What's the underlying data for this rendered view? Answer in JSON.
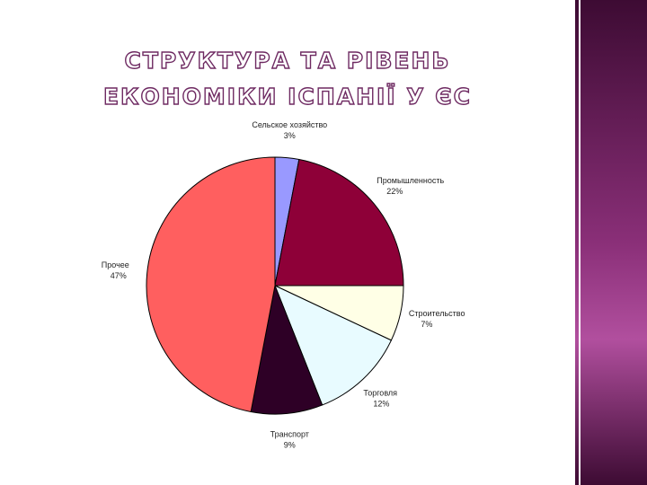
{
  "chart_data": {
    "type": "pie",
    "title": "СТРУКТУРА ТА РІВЕНЬ ЕКОНОМІКИ ІСПАНІЇ У ЄС",
    "categories": [
      "Сельское хозяйство",
      "Промышленность",
      "Строительство",
      "Торговля",
      "Транспорт",
      "Прочее"
    ],
    "values": [
      3,
      22,
      7,
      12,
      9,
      47
    ],
    "value_labels": [
      "3%",
      "22%",
      "7%",
      "12%",
      "9%",
      "47%"
    ],
    "colors": [
      "#9999ff",
      "#8e0038",
      "#ffffe6",
      "#e8fbff",
      "#2e0026",
      "#ff5f5f"
    ]
  }
}
